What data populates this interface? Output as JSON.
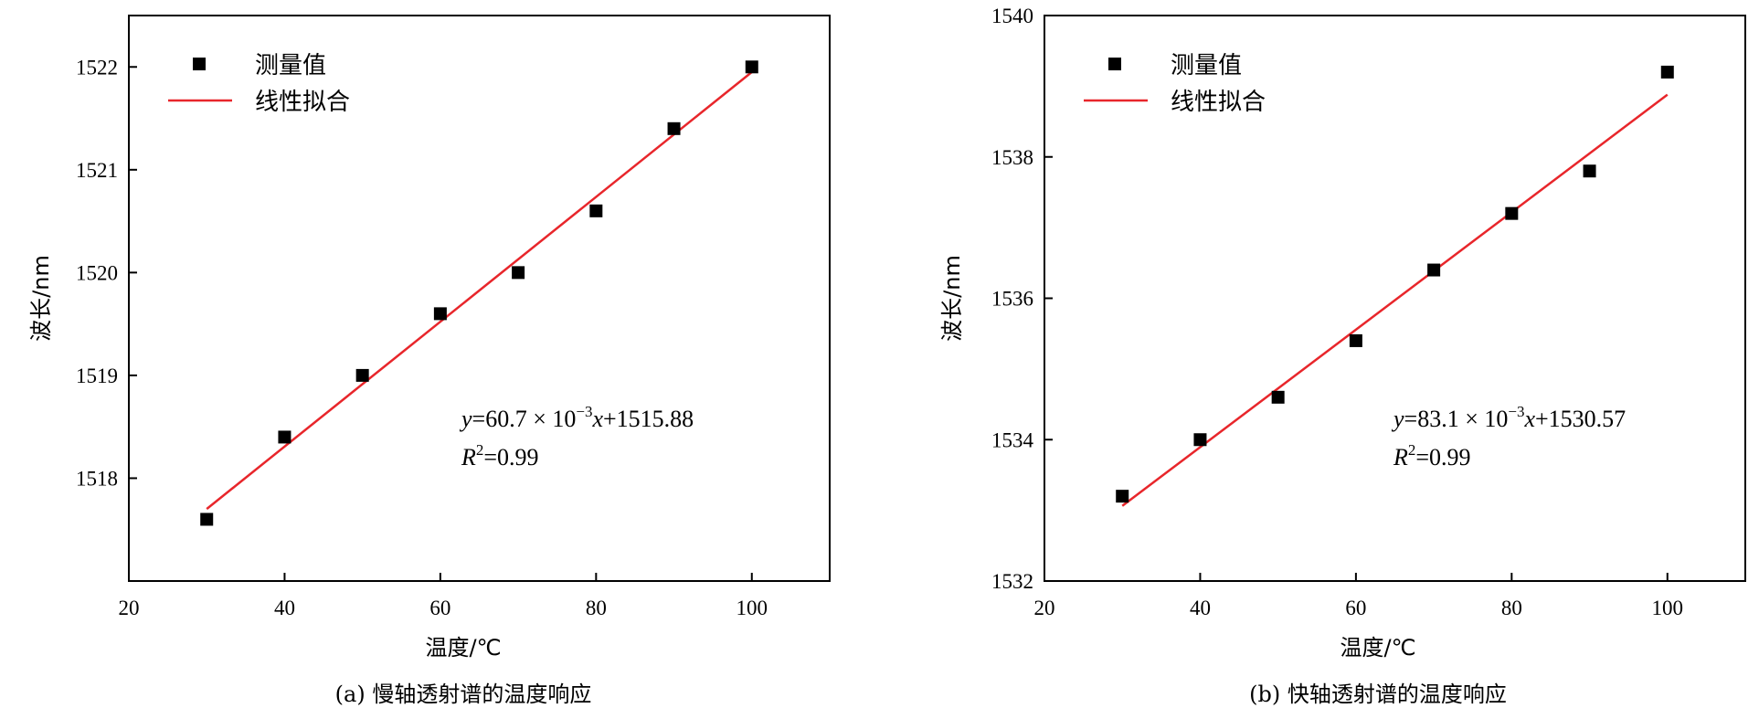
{
  "chart_data": [
    {
      "type": "scatter",
      "caption": "(a) 慢轴透射谱的温度响应",
      "xlabel": "温度/℃",
      "ylabel": "波长/nm",
      "xlim": [
        20,
        110
      ],
      "ylim": [
        1517,
        1522.5
      ],
      "xticks": [
        20,
        40,
        60,
        80,
        100
      ],
      "yticks": [
        1518,
        1519,
        1520,
        1521,
        1522
      ],
      "legend": {
        "points": "测量值",
        "fit": "线性拟合",
        "placement": "top-left"
      },
      "series": [
        {
          "name": "测量值",
          "x": [
            30,
            40,
            50,
            60,
            70,
            80,
            90,
            100
          ],
          "y": [
            1517.6,
            1518.4,
            1519.0,
            1519.6,
            1520.0,
            1520.6,
            1521.4,
            1522.0
          ]
        }
      ],
      "fit": {
        "name": "线性拟合",
        "slope": 0.0607,
        "intercept": 1515.88,
        "x_range": [
          30,
          100
        ]
      },
      "equation": {
        "y": "y",
        "eq": "=60.7 × 10",
        "exp": "−3",
        "x": "x",
        "rest": "+1515.88",
        "r": "R",
        "r2sup": "2",
        "r2val": "=0.99"
      },
      "grid": false
    },
    {
      "type": "scatter",
      "caption": "(b) 快轴透射谱的温度响应",
      "xlabel": "温度/℃",
      "ylabel": "波长/nm",
      "xlim": [
        20,
        110
      ],
      "ylim": [
        1532,
        1540
      ],
      "xticks": [
        20,
        40,
        60,
        80,
        100
      ],
      "yticks": [
        1532,
        1534,
        1536,
        1538,
        1540
      ],
      "legend": {
        "points": "测量值",
        "fit": "线性拟合",
        "placement": "top-left"
      },
      "series": [
        {
          "name": "测量值",
          "x": [
            30,
            40,
            50,
            60,
            70,
            80,
            90,
            100
          ],
          "y": [
            1533.2,
            1534.0,
            1534.6,
            1535.4,
            1536.4,
            1537.2,
            1537.8,
            1539.2
          ]
        }
      ],
      "fit": {
        "name": "线性拟合",
        "slope": 0.0831,
        "intercept": 1530.57,
        "x_range": [
          30,
          100
        ]
      },
      "equation": {
        "y": "y",
        "eq": "=83.1 × 10",
        "exp": "−3",
        "x": "x",
        "rest": "+1530.57",
        "r": "R",
        "r2sup": "2",
        "r2val": "=0.99"
      },
      "grid": false
    }
  ],
  "colors": {
    "fit": "#e8262b",
    "points": "#000000"
  }
}
